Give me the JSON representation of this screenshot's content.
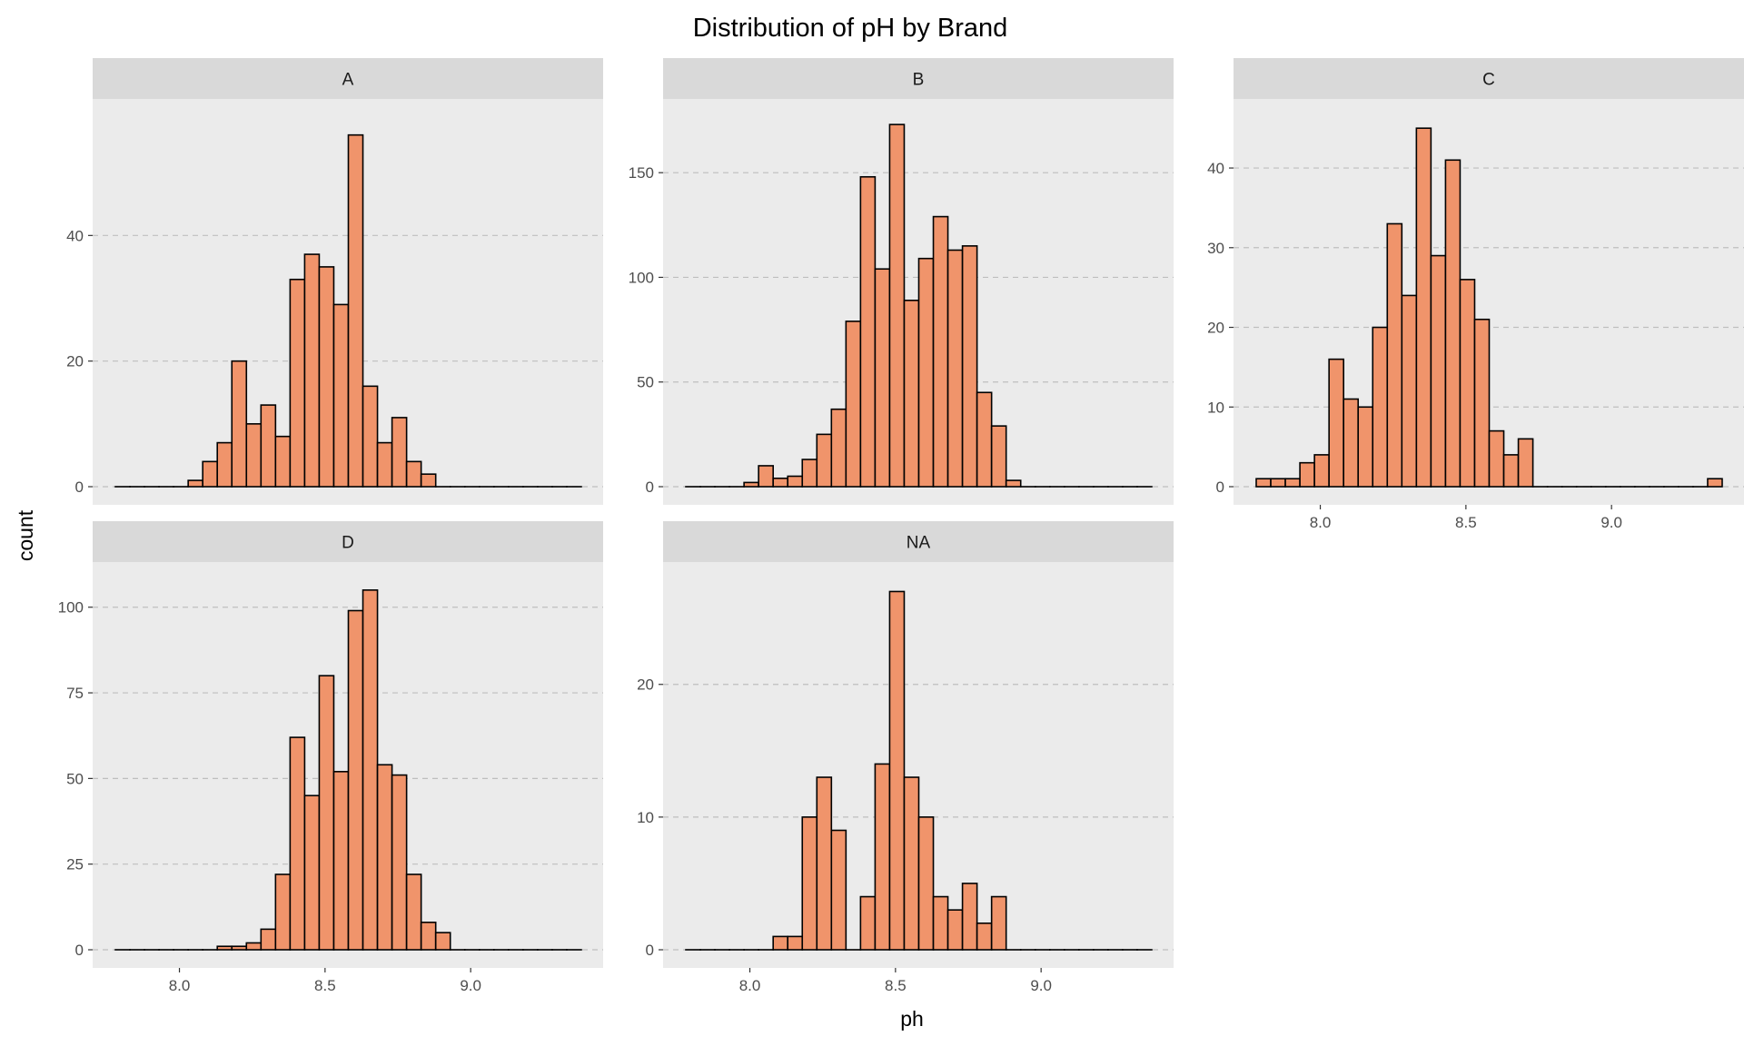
{
  "chart_data": {
    "type": "bar",
    "title": "Distribution of pH by Brand",
    "xlabel": "ph",
    "ylabel": "count",
    "grid": "horizontal dashed",
    "colors": {
      "bar_fill": "#F0946B",
      "bar_stroke": "#000000",
      "panel_bg": "#EBEBEB",
      "strip_bg": "#D9D9D9",
      "grid": "#BEBEBE"
    },
    "bins": {
      "start": 7.78,
      "width": 0.05,
      "count": 32
    },
    "x_ticks": [
      "8.0",
      "8.5",
      "9.0"
    ],
    "xlim": [
      7.78,
      9.38
    ],
    "facets": [
      {
        "label": "A",
        "ylim": [
          0,
          60
        ],
        "y_ticks": [
          "0",
          "20",
          "40"
        ],
        "values": [
          0,
          0,
          0,
          0,
          0,
          1,
          4,
          7,
          20,
          10,
          13,
          8,
          33,
          37,
          35,
          29,
          56,
          16,
          7,
          11,
          4,
          2,
          0,
          0,
          0,
          0,
          0,
          0,
          0,
          0,
          0,
          0
        ]
      },
      {
        "label": "B",
        "ylim": [
          0,
          180
        ],
        "y_ticks": [
          "0",
          "50",
          "100",
          "150"
        ],
        "values": [
          0,
          0,
          0,
          0,
          2,
          10,
          4,
          5,
          13,
          25,
          37,
          79,
          148,
          104,
          173,
          89,
          109,
          129,
          113,
          115,
          45,
          29,
          3,
          0,
          0,
          0,
          0,
          0,
          0,
          0,
          0,
          0
        ]
      },
      {
        "label": "C",
        "ylim": [
          0,
          47.3
        ],
        "y_ticks": [
          "0",
          "10",
          "20",
          "30",
          "40"
        ],
        "values": [
          1,
          1,
          1,
          3,
          4,
          16,
          11,
          10,
          20,
          33,
          24,
          45,
          29,
          41,
          26,
          21,
          7,
          4,
          6,
          0,
          0,
          0,
          0,
          0,
          0,
          0,
          0,
          0,
          0,
          0,
          0,
          1
        ]
      },
      {
        "label": "D",
        "ylim": [
          0,
          110
        ],
        "y_ticks": [
          "0",
          "25",
          "50",
          "75",
          "100"
        ],
        "values": [
          0,
          0,
          0,
          0,
          0,
          0,
          0,
          1,
          1,
          2,
          6,
          22,
          62,
          45,
          80,
          52,
          99,
          105,
          54,
          51,
          22,
          8,
          5,
          0,
          0,
          0,
          0,
          0,
          0,
          0,
          0,
          0
        ]
      },
      {
        "label": "NA",
        "ylim": [
          0,
          28.4
        ],
        "y_ticks": [
          "0",
          "10",
          "20"
        ],
        "values": [
          0,
          0,
          0,
          0,
          0,
          0,
          1,
          1,
          10,
          13,
          9,
          0,
          4,
          14,
          27,
          13,
          10,
          4,
          3,
          5,
          2,
          4,
          0,
          0,
          0,
          0,
          0,
          0,
          0,
          0,
          0,
          0
        ]
      }
    ]
  }
}
